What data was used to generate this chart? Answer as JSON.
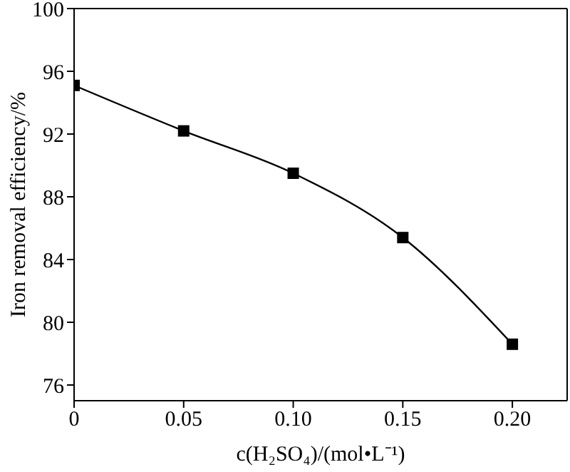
{
  "chart_data": {
    "type": "line",
    "xlabel": "c(H₂SO₄)/(mol•L⁻¹)",
    "ylabel": "Iron removal efficiency/%",
    "x": [
      0,
      0.05,
      0.1,
      0.15,
      0.2
    ],
    "series": [
      {
        "color": "#000000",
        "values": [
          95.1,
          92.2,
          89.5,
          85.4,
          78.6
        ]
      }
    ],
    "xlim": [
      0,
      0.225
    ],
    "xticks": [
      0,
      {
        "value": 0.05,
        "label": "0.05"
      },
      {
        "value": 0.1,
        "label": "0.10"
      },
      {
        "value": 0.15,
        "label": "0.15"
      },
      {
        "value": 0.2,
        "label": "0.20"
      }
    ],
    "ylim": [
      75,
      100
    ],
    "yticks": [
      76,
      80,
      84,
      88,
      92,
      96,
      100
    ],
    "marker": "square",
    "line_style": "solid",
    "grid": false
  }
}
